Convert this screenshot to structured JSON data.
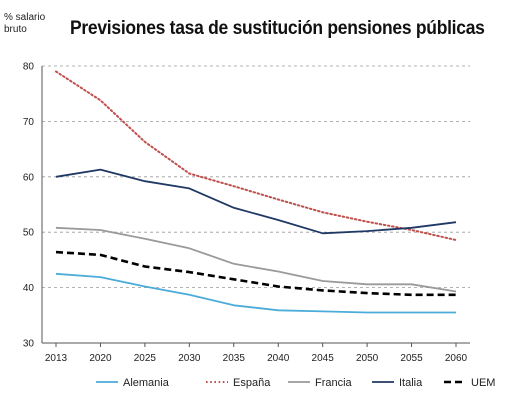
{
  "chart_data": {
    "type": "line",
    "title": "Previsiones tasa de sustitución pensiones públicas",
    "ylabel": "% salario bruto",
    "xlabel": "",
    "categories": [
      "2013",
      "2020",
      "2025",
      "2030",
      "2035",
      "2040",
      "2045",
      "2050",
      "2055",
      "2060"
    ],
    "ylim": [
      30,
      80
    ],
    "yticks": [
      30,
      40,
      50,
      60,
      70,
      80
    ],
    "grid": "horizontal dashed",
    "legend_position": "bottom",
    "series": [
      {
        "name": "Alemania",
        "color": "#4bacd9",
        "style": "solid",
        "values": [
          42.5,
          41.9,
          40.2,
          38.7,
          36.8,
          35.9,
          35.7,
          35.5,
          35.5,
          35.5
        ]
      },
      {
        "name": "España",
        "color": "#c0504d",
        "style": "dotted",
        "values": [
          79.0,
          73.8,
          66.3,
          60.6,
          58.3,
          55.9,
          53.6,
          51.9,
          50.4,
          48.6
        ]
      },
      {
        "name": "Francia",
        "color": "#9a9a9a",
        "style": "solid",
        "values": [
          50.8,
          50.4,
          48.8,
          47.1,
          44.3,
          42.9,
          41.2,
          40.6,
          40.6,
          39.3
        ]
      },
      {
        "name": "Italia",
        "color": "#1f3864",
        "style": "solid",
        "values": [
          60.0,
          61.3,
          59.2,
          57.9,
          54.4,
          52.2,
          49.8,
          50.2,
          50.8,
          51.8
        ]
      },
      {
        "name": "UEM",
        "color": "#000000",
        "style": "dashed",
        "values": [
          46.4,
          45.9,
          43.8,
          42.8,
          41.5,
          40.2,
          39.5,
          39.0,
          38.7,
          38.7
        ]
      }
    ]
  }
}
